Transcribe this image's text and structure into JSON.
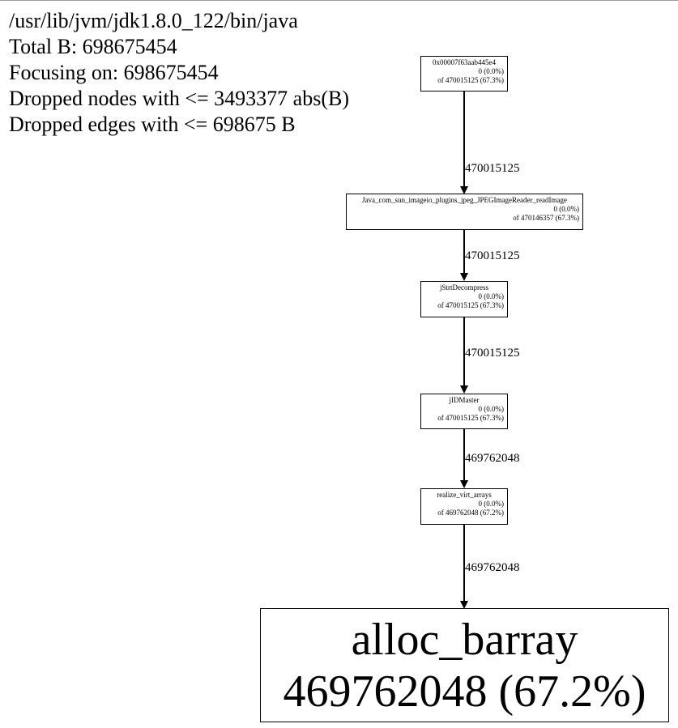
{
  "header": {
    "binary": "/usr/lib/jvm/jdk1.8.0_122/bin/java",
    "total": "Total B: 698675454",
    "focusing": "Focusing on: 698675454",
    "dropped_nodes": "Dropped nodes with <= 3493377 abs(B)",
    "dropped_edges": "Dropped edges with <= 698675 B"
  },
  "nodes": [
    {
      "name": "0x00007f63aab445e4",
      "self": "0 (0.0%)",
      "total": "of 470015125 (67.3%)"
    },
    {
      "name": "Java_com_sun_imageio_plugins_jpeg_JPEGImageReader_readImage",
      "self": "0 (0.0%)",
      "total": "of 470146357 (67.3%)"
    },
    {
      "name": "jStrtDecompress",
      "self": "0 (0.0%)",
      "total": "of 470015125 (67.3%)"
    },
    {
      "name": "jIDMaster",
      "self": "0 (0.0%)",
      "total": "of 470015125 (67.3%)"
    },
    {
      "name": "realize_virt_arrays",
      "self": "0 (0.0%)",
      "total": "of 469762048 (67.2%)"
    },
    {
      "name": "alloc_barray",
      "self": "469762048 (67.2%)"
    }
  ],
  "edges": [
    {
      "label": "470015125"
    },
    {
      "label": "470015125"
    },
    {
      "label": "470015125"
    },
    {
      "label": "469762048"
    },
    {
      "label": "469762048"
    }
  ]
}
